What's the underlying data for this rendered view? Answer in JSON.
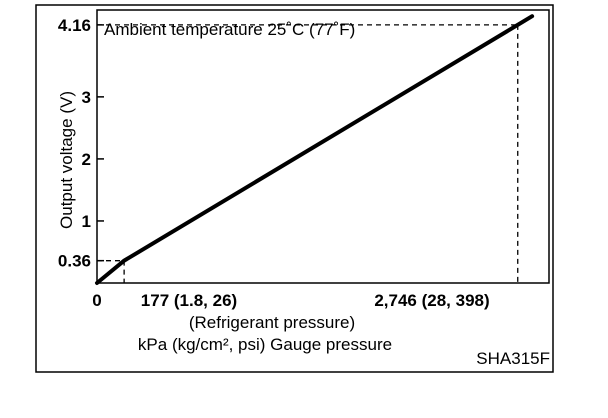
{
  "chart_data": {
    "type": "line",
    "title": "Ambient temperature 25˚C (77˚F)",
    "ylabel": "Output voltage (V)",
    "xlabel": "(Refrigerant pressure)",
    "xlabel_units": "kPa (kg/cm², psi) Gauge pressure",
    "figure_code": "SHA315F",
    "xlim": [
      0,
      2950
    ],
    "ylim": [
      0,
      4.4
    ],
    "x_ticks": [
      {
        "value": 0,
        "label": "0"
      },
      {
        "value": 177,
        "label": "177 (1.8, 26)"
      },
      {
        "value": 2746,
        "label": "2,746 (28, 398)"
      }
    ],
    "y_ticks": [
      {
        "value": 0.36,
        "label": "0.36"
      },
      {
        "value": 1,
        "label": "1"
      },
      {
        "value": 2,
        "label": "2"
      },
      {
        "value": 3,
        "label": "3"
      },
      {
        "value": 4.16,
        "label": "4.16"
      }
    ],
    "series": [
      {
        "x": [
          0,
          177,
          2746,
          2840
        ],
        "y": [
          0.0,
          0.36,
          4.16,
          4.3
        ],
        "color": "#000000"
      }
    ],
    "reference_points": [
      {
        "x": 177,
        "y": 0.36
      },
      {
        "x": 2746,
        "y": 4.16
      }
    ],
    "grid": false
  }
}
